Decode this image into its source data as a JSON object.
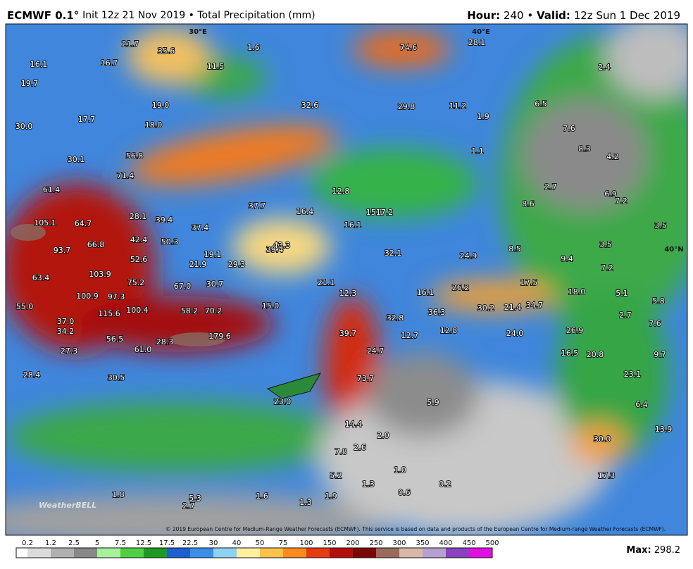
{
  "header": {
    "model": "ECMWF 0.1°",
    "run": "Init 12z 21 Nov 2019 • Total Precipitation (mm)",
    "hour_label": "Hour:",
    "hour": "240",
    "separator": "•",
    "valid_label": "Valid:",
    "valid": "12z Sun 1 Dec 2019"
  },
  "map": {
    "grid_labels": [
      "30°E",
      "40°E",
      "40°N"
    ],
    "values": [
      "16.1",
      "16.7",
      "21.7",
      "35.6",
      "1.6",
      "11.5",
      "74.6",
      "28.1",
      "2.4",
      "19.7",
      "19.0",
      "32.6",
      "29.8",
      "11.2",
      "1.9",
      "6.5",
      "30.0",
      "17.7",
      "18.0",
      "7.6",
      "8.3",
      "4.2",
      "30.1",
      "56.8",
      "1.1",
      "71.4",
      "61.4",
      "12.8",
      "2.7",
      "6.9",
      "7.2",
      "37.7",
      "16.4",
      "15.1",
      "17.2",
      "8.6",
      "28.1",
      "39.4",
      "105.1",
      "64.7",
      "37.4",
      "16.1",
      "3.5",
      "42.4",
      "50.3",
      "43.3",
      "66.8",
      "93.7",
      "19.1",
      "39.4",
      "32.1",
      "8.5",
      "3.5",
      "24.9",
      "9.4",
      "52.6",
      "21.9",
      "29.3",
      "7.2",
      "63.4",
      "103.9",
      "75.2",
      "67.0",
      "30.7",
      "21.1",
      "17.5",
      "26.2",
      "12.3",
      "16.1",
      "18.0",
      "5.1",
      "100.9",
      "97.3",
      "5.8",
      "55.0",
      "100.4",
      "58.2",
      "70.2",
      "15.0",
      "30.2",
      "21.4",
      "34.7",
      "36.3",
      "2.7",
      "115.6",
      "32.8",
      "37.0",
      "7.6",
      "34.2",
      "39.7",
      "12.7",
      "12.8",
      "24.0",
      "26.9",
      "179.6",
      "56.5",
      "28.3",
      "27.3",
      "24.7",
      "61.0",
      "16.5",
      "20.8",
      "9.7",
      "28.4",
      "30.5",
      "73.7",
      "23.1",
      "23.0",
      "5.9",
      "6.4",
      "14.4",
      "13.9",
      "2.0",
      "30.0",
      "2.6",
      "7.8",
      "1.0",
      "5.2",
      "1.3",
      "0.2",
      "17.3",
      "1.8",
      "0.6",
      "1.6",
      "5.3",
      "1.9",
      "1.3",
      "2.7"
    ],
    "logo": "WeatherBELL",
    "copyright": "© 2019 European Centre for Medium-Range Weather Forecasts (ECMWF). This service is based on data and products of the European Centre for Medium-range Weather Forecasts (ECMWF)."
  },
  "legend": {
    "ticks": [
      0.2,
      1.2,
      2.5,
      5,
      7.5,
      12.5,
      17.5,
      22.5,
      30,
      40,
      50,
      75,
      100,
      150,
      200,
      250,
      300,
      350,
      400,
      450,
      500
    ],
    "colors": [
      "#ffffff",
      "#dcdcdc",
      "#b0b0b0",
      "#888888",
      "#a6f19a",
      "#4fcf45",
      "#1e9a24",
      "#1c5fd0",
      "#3a8ee8",
      "#8fd0f5",
      "#fff0a0",
      "#ffc24a",
      "#ff8a1e",
      "#e63a12",
      "#b50f0c",
      "#7a0806",
      "#9a6a5a",
      "#d8b8a8",
      "#b6a0d0",
      "#8a40c0",
      "#e010e0"
    ]
  },
  "footer": {
    "max_label": "Max:",
    "max": "298.2"
  }
}
